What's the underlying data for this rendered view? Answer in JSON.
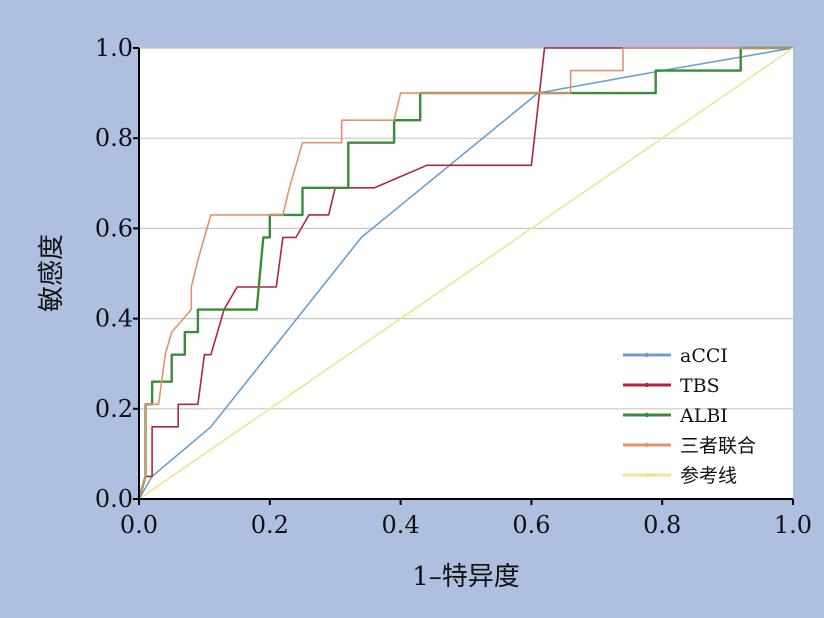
{
  "chart_data": {
    "type": "line",
    "title": "",
    "xlabel": "1–特异度",
    "ylabel": "敏感度",
    "xlim": [
      0,
      1
    ],
    "ylim": [
      0,
      1
    ],
    "xticks": [
      "0.0",
      "0.2",
      "0.4",
      "0.6",
      "0.8",
      "1.0"
    ],
    "yticks": [
      "0.0",
      "0.2",
      "0.4",
      "0.6",
      "0.8",
      "1.0"
    ],
    "grid": "horizontal",
    "legend_position": "bottom-right",
    "series": [
      {
        "name": "aCCI",
        "color": "#6a9fd0",
        "points": [
          [
            0,
            0
          ],
          [
            0.02,
            0.05
          ],
          [
            0.11,
            0.16
          ],
          [
            0.34,
            0.58
          ],
          [
            0.61,
            0.9
          ],
          [
            0.8,
            0.95
          ],
          [
            1,
            1
          ]
        ]
      },
      {
        "name": "TBS",
        "color": "#b2253f",
        "points": [
          [
            0,
            0
          ],
          [
            0.01,
            0.05
          ],
          [
            0.02,
            0.05
          ],
          [
            0.02,
            0.16
          ],
          [
            0.06,
            0.16
          ],
          [
            0.06,
            0.21
          ],
          [
            0.09,
            0.21
          ],
          [
            0.1,
            0.32
          ],
          [
            0.11,
            0.32
          ],
          [
            0.12,
            0.37
          ],
          [
            0.13,
            0.42
          ],
          [
            0.15,
            0.47
          ],
          [
            0.21,
            0.47
          ],
          [
            0.22,
            0.58
          ],
          [
            0.24,
            0.58
          ],
          [
            0.26,
            0.63
          ],
          [
            0.29,
            0.63
          ],
          [
            0.3,
            0.69
          ],
          [
            0.36,
            0.69
          ],
          [
            0.44,
            0.74
          ],
          [
            0.6,
            0.74
          ],
          [
            0.62,
            1
          ],
          [
            1,
            1
          ]
        ]
      },
      {
        "name": "ALBI",
        "color": "#3b8c3a",
        "points": [
          [
            0,
            0
          ],
          [
            0.01,
            0.05
          ],
          [
            0.01,
            0.21
          ],
          [
            0.02,
            0.21
          ],
          [
            0.02,
            0.26
          ],
          [
            0.05,
            0.26
          ],
          [
            0.05,
            0.32
          ],
          [
            0.07,
            0.32
          ],
          [
            0.07,
            0.37
          ],
          [
            0.09,
            0.37
          ],
          [
            0.09,
            0.42
          ],
          [
            0.18,
            0.42
          ],
          [
            0.19,
            0.58
          ],
          [
            0.2,
            0.58
          ],
          [
            0.2,
            0.63
          ],
          [
            0.25,
            0.63
          ],
          [
            0.25,
            0.69
          ],
          [
            0.32,
            0.69
          ],
          [
            0.32,
            0.79
          ],
          [
            0.39,
            0.79
          ],
          [
            0.39,
            0.84
          ],
          [
            0.43,
            0.84
          ],
          [
            0.43,
            0.9
          ],
          [
            0.61,
            0.9
          ],
          [
            0.79,
            0.9
          ],
          [
            0.79,
            0.95
          ],
          [
            0.92,
            0.95
          ],
          [
            0.92,
            1
          ],
          [
            1,
            1
          ]
        ]
      },
      {
        "name": "三者联合",
        "color": "#e4926a",
        "points": [
          [
            0,
            0
          ],
          [
            0.01,
            0.05
          ],
          [
            0.01,
            0.21
          ],
          [
            0.03,
            0.21
          ],
          [
            0.04,
            0.32
          ],
          [
            0.05,
            0.37
          ],
          [
            0.08,
            0.42
          ],
          [
            0.08,
            0.47
          ],
          [
            0.09,
            0.53
          ],
          [
            0.1,
            0.58
          ],
          [
            0.11,
            0.63
          ],
          [
            0.22,
            0.63
          ],
          [
            0.23,
            0.69
          ],
          [
            0.25,
            0.79
          ],
          [
            0.31,
            0.79
          ],
          [
            0.31,
            0.84
          ],
          [
            0.39,
            0.84
          ],
          [
            0.4,
            0.9
          ],
          [
            0.66,
            0.9
          ],
          [
            0.66,
            0.95
          ],
          [
            0.74,
            0.95
          ],
          [
            0.74,
            1
          ],
          [
            1,
            1
          ]
        ]
      },
      {
        "name": "参考线",
        "color": "#ece592",
        "points": [
          [
            0,
            0
          ],
          [
            1,
            1
          ]
        ]
      }
    ]
  }
}
